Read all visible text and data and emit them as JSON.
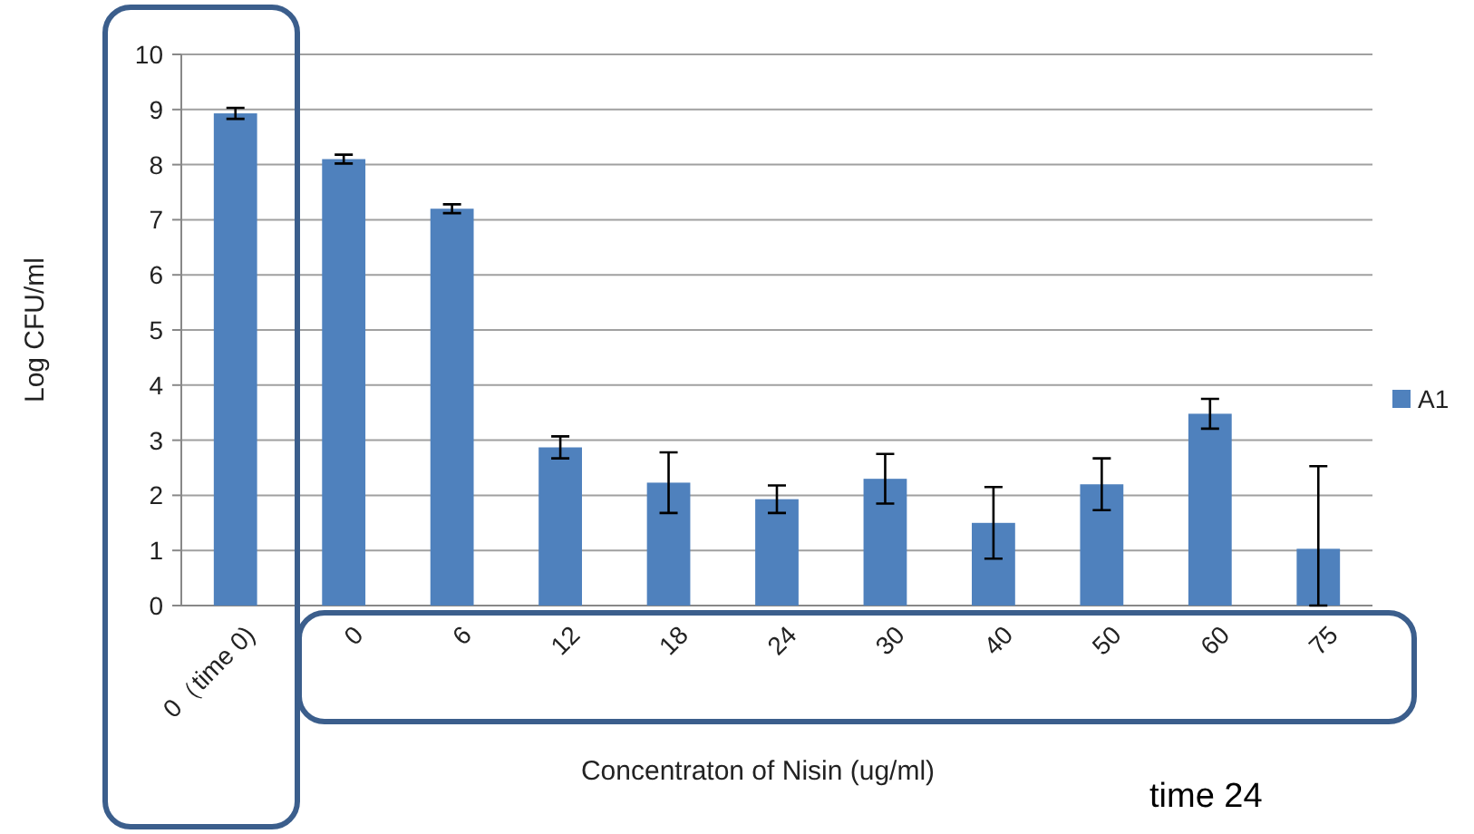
{
  "chart_data": {
    "type": "bar",
    "xlabel": "Concentraton of Nisin (ug/ml)",
    "ylabel": "Log CFU/ml",
    "categories": [
      "0（time 0)",
      "0",
      "6",
      "12",
      "18",
      "24",
      "30",
      "40",
      "50",
      "60",
      "75"
    ],
    "series": [
      {
        "name": "A1",
        "color": "#4f81bd",
        "values": [
          8.93,
          8.1,
          7.2,
          2.87,
          2.23,
          1.93,
          2.3,
          1.5,
          2.2,
          3.48,
          1.03
        ],
        "errors": [
          0.1,
          0.08,
          0.08,
          0.2,
          0.55,
          0.25,
          0.45,
          0.65,
          0.47,
          0.27,
          [
            0,
            2.53
          ]
        ]
      }
    ],
    "ylim": [
      0,
      10
    ],
    "yticks": [
      0,
      1,
      2,
      3,
      4,
      5,
      6,
      7,
      8,
      9,
      10
    ],
    "grid": "y",
    "legend": "right",
    "annotations": [
      "time 24"
    ]
  }
}
